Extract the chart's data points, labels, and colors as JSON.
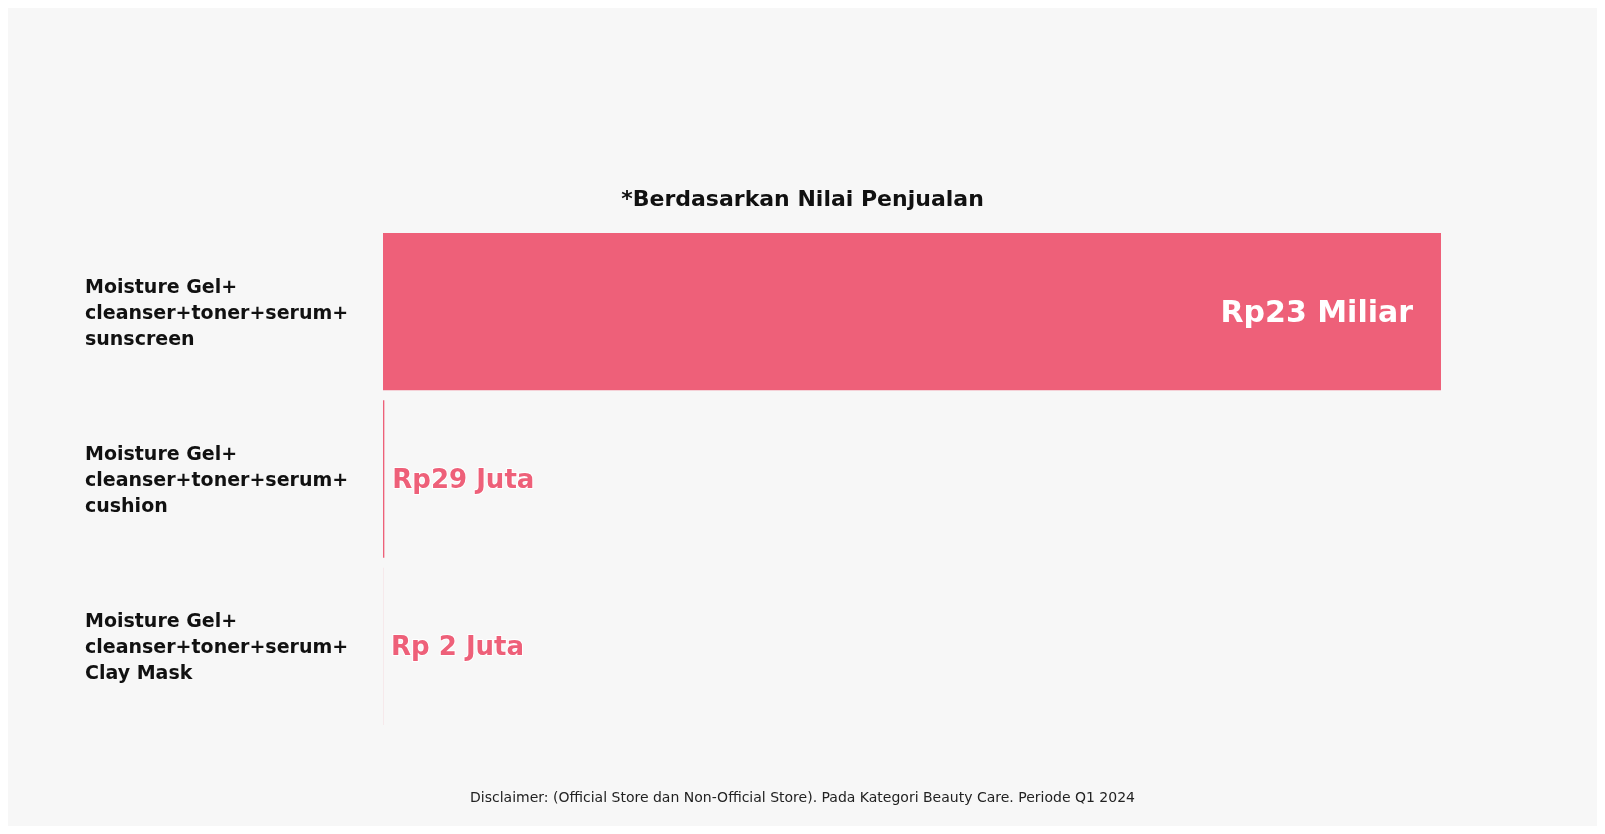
{
  "chart_data": {
    "type": "bar",
    "orientation": "horizontal",
    "title": "*Berdasarkan Nilai Penjualan",
    "categories": [
      "Moisture Gel+ cleanser+toner+serum+ sunscreen",
      "Moisture Gel+ cleanser+toner+serum+ cushion",
      "Moisture Gel+ cleanser+toner+serum+Clay Mask"
    ],
    "values": [
      23000,
      29,
      2
    ],
    "value_labels": [
      "Rp23 Miliar",
      "Rp29 Juta",
      "Rp 2 Juta"
    ],
    "color": "#ee6079",
    "grid": false,
    "annotations": [
      "Disclaimer: (Official Store dan Non-Official Store). Pada Kategori Beauty Care. Periode Q1 2024"
    ]
  }
}
